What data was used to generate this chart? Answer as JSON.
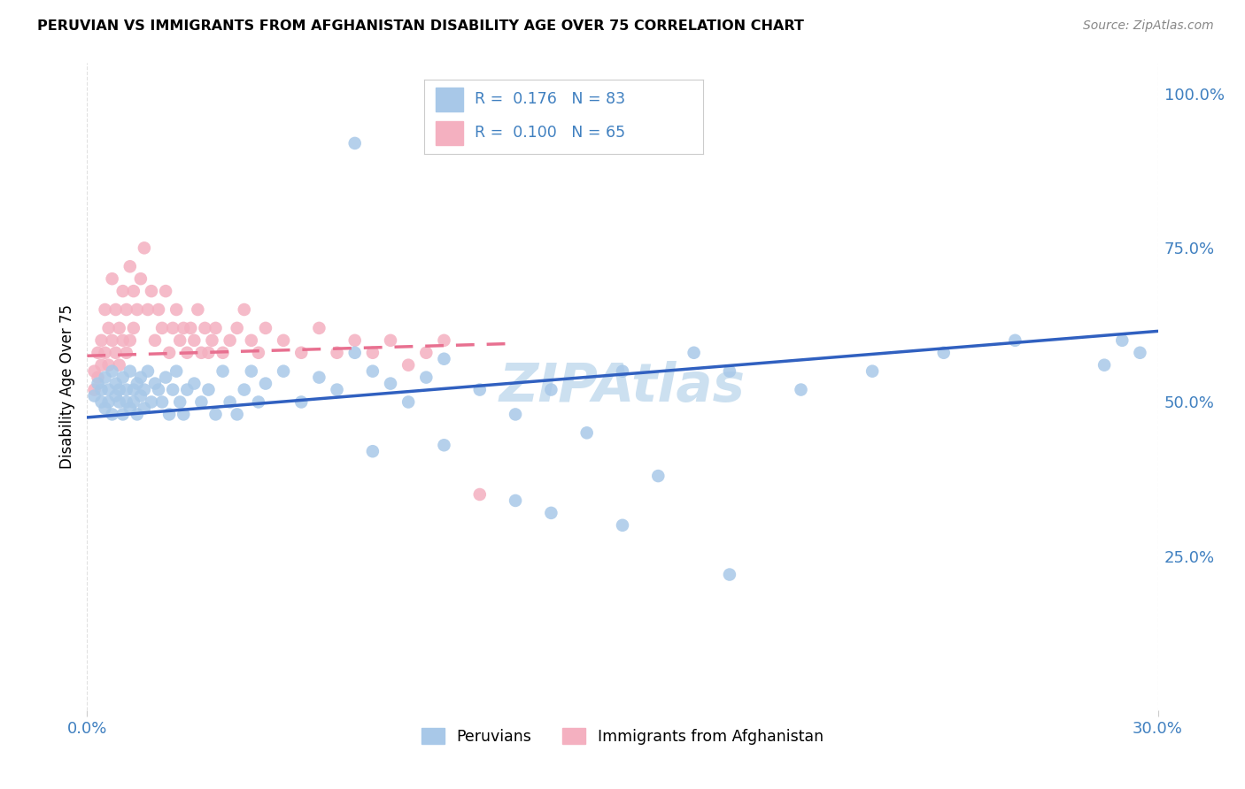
{
  "title": "PERUVIAN VS IMMIGRANTS FROM AFGHANISTAN DISABILITY AGE OVER 75 CORRELATION CHART",
  "source": "Source: ZipAtlas.com",
  "ylabel": "Disability Age Over 75",
  "peruvian_color": "#a8c8e8",
  "afghanistan_color": "#f4b0c0",
  "peruvian_line_color": "#3060c0",
  "afghanistan_line_color": "#e87090",
  "text_blue": "#4080c0",
  "watermark_color": "#cce0f0",
  "xmin": 0.0,
  "xmax": 0.3,
  "ymin": 0.0,
  "ymax": 1.05,
  "yticks": [
    0.25,
    0.5,
    0.75,
    1.0
  ],
  "ytick_labels": [
    "25.0%",
    "50.0%",
    "75.0%",
    "100.0%"
  ],
  "xtick_left": "0.0%",
  "xtick_right": "30.0%",
  "peru_x": [
    0.002,
    0.003,
    0.004,
    0.004,
    0.005,
    0.005,
    0.006,
    0.006,
    0.007,
    0.007,
    0.008,
    0.008,
    0.009,
    0.009,
    0.01,
    0.01,
    0.011,
    0.011,
    0.012,
    0.012,
    0.013,
    0.013,
    0.014,
    0.014,
    0.015,
    0.015,
    0.016,
    0.016,
    0.017,
    0.018,
    0.019,
    0.02,
    0.021,
    0.022,
    0.023,
    0.024,
    0.025,
    0.026,
    0.027,
    0.028,
    0.03,
    0.032,
    0.034,
    0.036,
    0.038,
    0.04,
    0.042,
    0.044,
    0.046,
    0.048,
    0.05,
    0.055,
    0.06,
    0.065,
    0.07,
    0.075,
    0.08,
    0.085,
    0.09,
    0.095,
    0.1,
    0.11,
    0.12,
    0.13,
    0.14,
    0.15,
    0.16,
    0.17,
    0.18,
    0.2,
    0.22,
    0.24,
    0.26,
    0.075,
    0.12,
    0.13,
    0.15,
    0.18,
    0.08,
    0.1,
    0.29,
    0.295,
    0.285
  ],
  "peru_y": [
    0.51,
    0.53,
    0.5,
    0.52,
    0.49,
    0.54,
    0.52,
    0.5,
    0.55,
    0.48,
    0.51,
    0.53,
    0.5,
    0.52,
    0.54,
    0.48,
    0.52,
    0.5,
    0.55,
    0.49,
    0.52,
    0.5,
    0.53,
    0.48,
    0.54,
    0.51,
    0.52,
    0.49,
    0.55,
    0.5,
    0.53,
    0.52,
    0.5,
    0.54,
    0.48,
    0.52,
    0.55,
    0.5,
    0.48,
    0.52,
    0.53,
    0.5,
    0.52,
    0.48,
    0.55,
    0.5,
    0.48,
    0.52,
    0.55,
    0.5,
    0.53,
    0.55,
    0.5,
    0.54,
    0.52,
    0.58,
    0.55,
    0.53,
    0.5,
    0.54,
    0.57,
    0.52,
    0.48,
    0.52,
    0.45,
    0.55,
    0.38,
    0.58,
    0.55,
    0.52,
    0.55,
    0.58,
    0.6,
    0.92,
    0.34,
    0.32,
    0.3,
    0.22,
    0.42,
    0.43,
    0.6,
    0.58,
    0.56
  ],
  "afghan_x": [
    0.002,
    0.002,
    0.003,
    0.003,
    0.004,
    0.004,
    0.005,
    0.005,
    0.006,
    0.006,
    0.007,
    0.007,
    0.008,
    0.008,
    0.009,
    0.009,
    0.01,
    0.01,
    0.011,
    0.011,
    0.012,
    0.012,
    0.013,
    0.013,
    0.014,
    0.015,
    0.016,
    0.017,
    0.018,
    0.019,
    0.02,
    0.021,
    0.022,
    0.023,
    0.024,
    0.025,
    0.026,
    0.027,
    0.028,
    0.029,
    0.03,
    0.031,
    0.032,
    0.033,
    0.034,
    0.035,
    0.036,
    0.038,
    0.04,
    0.042,
    0.044,
    0.046,
    0.048,
    0.05,
    0.055,
    0.06,
    0.065,
    0.07,
    0.075,
    0.08,
    0.085,
    0.09,
    0.095,
    0.1,
    0.11
  ],
  "afghan_y": [
    0.52,
    0.55,
    0.58,
    0.54,
    0.6,
    0.56,
    0.65,
    0.58,
    0.62,
    0.56,
    0.7,
    0.6,
    0.65,
    0.58,
    0.62,
    0.56,
    0.68,
    0.6,
    0.65,
    0.58,
    0.72,
    0.6,
    0.68,
    0.62,
    0.65,
    0.7,
    0.75,
    0.65,
    0.68,
    0.6,
    0.65,
    0.62,
    0.68,
    0.58,
    0.62,
    0.65,
    0.6,
    0.62,
    0.58,
    0.62,
    0.6,
    0.65,
    0.58,
    0.62,
    0.58,
    0.6,
    0.62,
    0.58,
    0.6,
    0.62,
    0.65,
    0.6,
    0.58,
    0.62,
    0.6,
    0.58,
    0.62,
    0.58,
    0.6,
    0.58,
    0.6,
    0.56,
    0.58,
    0.6,
    0.35
  ],
  "peru_trendline_x0": 0.0,
  "peru_trendline_y0": 0.475,
  "peru_trendline_x1": 0.3,
  "peru_trendline_y1": 0.615,
  "afghan_trendline_x0": 0.0,
  "afghan_trendline_y0": 0.575,
  "afghan_trendline_x1": 0.12,
  "afghan_trendline_y1": 0.595
}
